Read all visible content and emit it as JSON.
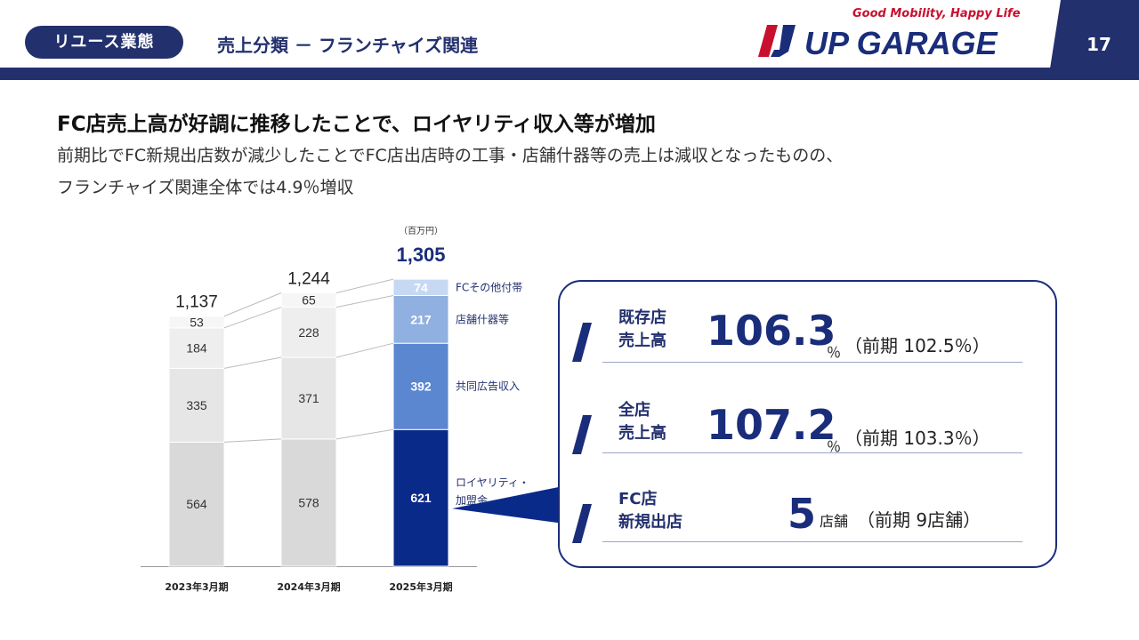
{
  "header": {
    "badge": "リユース業態",
    "title": "売上分類 － フランチャイズ関連",
    "tagline": "Good Mobility, Happy Life",
    "logo_text": "UP GARAGE",
    "page_number": "17",
    "colors": {
      "navy": "#23306e",
      "bar": "#0a2a8a",
      "red": "#c8102e"
    }
  },
  "headline": "FC店売上高が好調に推移したことで、ロイヤリティ収入等が増加",
  "subtext": [
    "前期比でFC新規出店数が減少したことでFC店出店時の工事・店舗什器等の売上は減収となったものの、",
    "フランチャイズ関連全体では4.9％増収"
  ],
  "chart_data": {
    "type": "bar",
    "stacked": true,
    "unit": "（百万円）",
    "categories": [
      "2023年3月期",
      "2024年3月期",
      "2025年3月期"
    ],
    "totals": [
      "1,137",
      "1,244",
      "1,305"
    ],
    "series": [
      {
        "name": "ロイヤリティ・加盟金",
        "values": [
          564,
          578,
          621
        ],
        "colors": [
          "#d9d9d9",
          "#d9d9d9",
          "#0a2a8a"
        ]
      },
      {
        "name": "共同広告収入",
        "values": [
          335,
          371,
          392
        ],
        "colors": [
          "#e6e6e6",
          "#e6e6e6",
          "#5b86d0"
        ]
      },
      {
        "name": "店舗什器等",
        "values": [
          184,
          228,
          217
        ],
        "colors": [
          "#eeeeee",
          "#eeeeee",
          "#8fb0e0"
        ]
      },
      {
        "name": "FCその他付帯",
        "values": [
          53,
          65,
          74
        ],
        "colors": [
          "#f6f6f6",
          "#f6f6f6",
          "#c6d8f2"
        ]
      }
    ],
    "ylim": [
      0,
      1305
    ],
    "legend_position": "right of last bar"
  },
  "kpis": [
    {
      "label_lines": [
        "既存店",
        "売上高"
      ],
      "value": "106.3",
      "unit": "％",
      "prev": "（前期 102.5％）"
    },
    {
      "label_lines": [
        "全店",
        "売上高"
      ],
      "value": "107.2",
      "unit": "％",
      "prev": "（前期 103.3％）"
    },
    {
      "label_lines": [
        "FC店",
        "新規出店"
      ],
      "value": "5",
      "unit": "店舗",
      "prev": "（前期 9店舗）"
    }
  ]
}
